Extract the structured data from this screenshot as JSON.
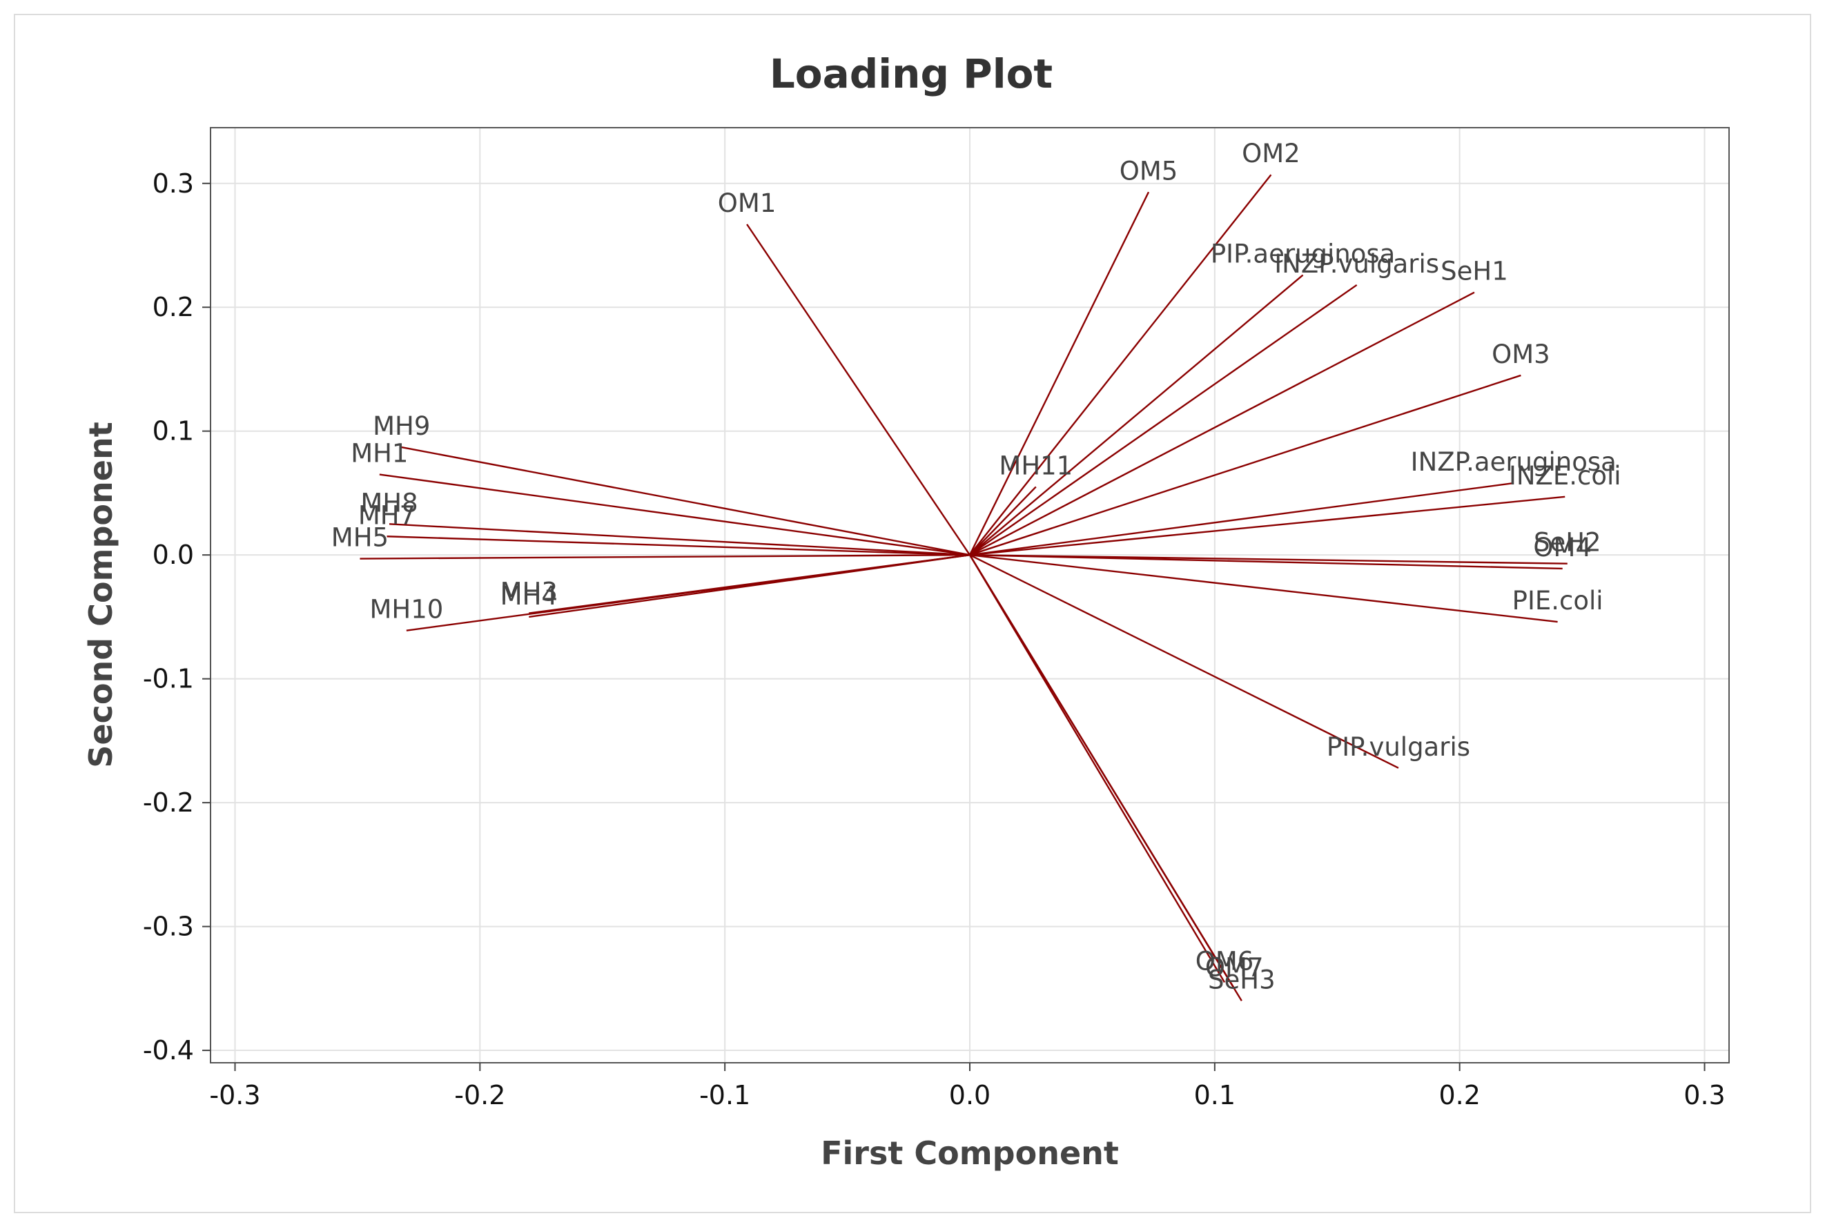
{
  "chart_data": {
    "type": "scatter",
    "title": "Loading Plot",
    "xlabel": "First Component",
    "ylabel": "Second Component",
    "xlim": [
      -0.31,
      0.31
    ],
    "ylim": [
      -0.41,
      0.345
    ],
    "xticks": [
      -0.3,
      -0.2,
      -0.1,
      0.0,
      0.1,
      0.2,
      0.3
    ],
    "yticks": [
      -0.4,
      -0.3,
      -0.2,
      -0.1,
      0.0,
      0.1,
      0.2,
      0.3
    ],
    "xtick_labels": [
      "-0.3",
      "-0.2",
      "-0.1",
      "0.0",
      "0.1",
      "0.2",
      "0.3"
    ],
    "ytick_labels": [
      "-0.4",
      "-0.3",
      "-0.2",
      "-0.1",
      "0.0",
      "0.1",
      "0.2",
      "0.3"
    ],
    "grid": true,
    "line_color": "#8b0000",
    "points": [
      {
        "label": "OM1",
        "x": -0.091,
        "y": 0.267
      },
      {
        "label": "OM5",
        "x": 0.073,
        "y": 0.293
      },
      {
        "label": "OM2",
        "x": 0.123,
        "y": 0.307
      },
      {
        "label": "PIP.aeruginosa",
        "x": 0.136,
        "y": 0.226
      },
      {
        "label": "INZP.vulgaris",
        "x": 0.158,
        "y": 0.218
      },
      {
        "label": "SeH1",
        "x": 0.206,
        "y": 0.212
      },
      {
        "label": "OM3",
        "x": 0.225,
        "y": 0.145
      },
      {
        "label": "MH9",
        "x": -0.232,
        "y": 0.087
      },
      {
        "label": "MH1",
        "x": -0.241,
        "y": 0.065
      },
      {
        "label": "MH11",
        "x": 0.027,
        "y": 0.055
      },
      {
        "label": "INZP.aeruginosa",
        "x": 0.222,
        "y": 0.058
      },
      {
        "label": "INZE.coli",
        "x": 0.243,
        "y": 0.047
      },
      {
        "label": "MH8",
        "x": -0.237,
        "y": 0.025
      },
      {
        "label": "MH7",
        "x": -0.238,
        "y": 0.015
      },
      {
        "label": "MH5",
        "x": -0.249,
        "y": -0.003
      },
      {
        "label": "SeH2",
        "x": 0.244,
        "y": -0.007
      },
      {
        "label": "OM4",
        "x": 0.242,
        "y": -0.011
      },
      {
        "label": "MH3",
        "x": -0.18,
        "y": -0.047
      },
      {
        "label": "MH4",
        "x": -0.18,
        "y": -0.05
      },
      {
        "label": "MH10",
        "x": -0.23,
        "y": -0.061
      },
      {
        "label": "PIE.coli",
        "x": 0.24,
        "y": -0.054
      },
      {
        "label": "PIP.vulgaris",
        "x": 0.175,
        "y": -0.172
      },
      {
        "label": "OM7",
        "x": 0.108,
        "y": -0.35
      },
      {
        "label": "SeH3",
        "x": 0.111,
        "y": -0.36
      },
      {
        "label": "OM6",
        "x": 0.104,
        "y": -0.345
      }
    ]
  }
}
